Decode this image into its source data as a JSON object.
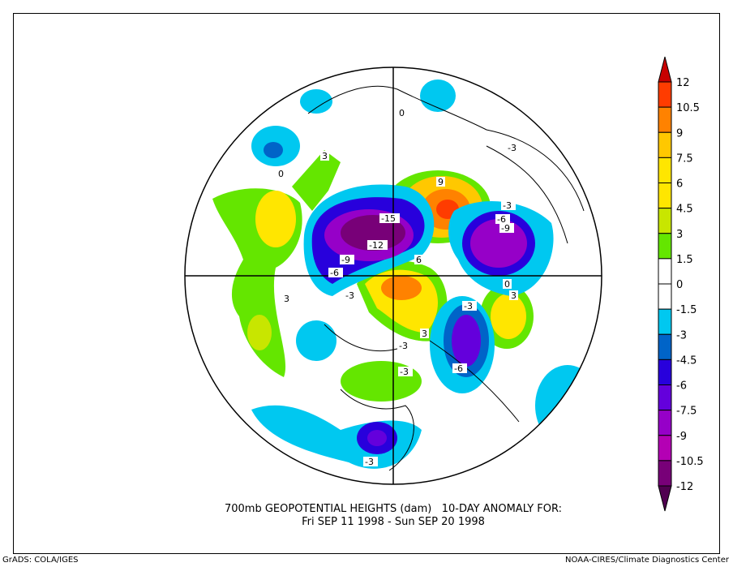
{
  "title": {
    "line1": "700mb GEOPOTENTIAL HEIGHTS (dam)   10-DAY ANOMALY FOR:",
    "line2": "Fri SEP 11 1998 - Sun SEP 20 1998"
  },
  "footer": {
    "left": "GrADS: COLA/IGES",
    "right": "NOAA-CIRES/Climate Diagnostics Center"
  },
  "colorbar": {
    "labels": [
      "12",
      "10.5",
      "9",
      "7.5",
      "6",
      "4.5",
      "3",
      "1.5",
      "0",
      "-1.5",
      "-3",
      "-4.5",
      "-6",
      "-7.5",
      "-9",
      "-10.5",
      "-12"
    ],
    "colors": [
      "#ff3c00",
      "#ff8200",
      "#ffc800",
      "#ffe600",
      "#ffe600",
      "#c8e600",
      "#64e600",
      "#ffffff",
      "#ffffff",
      "#00c8f0",
      "#0064c8",
      "#2800dc",
      "#6400dc",
      "#9600c8",
      "#b400b4",
      "#780078"
    ],
    "over_color": "#c80000",
    "under_color": "#500050"
  },
  "map_labels": [
    "-15",
    "-12",
    "-9",
    "-6",
    "-3",
    "3",
    "6",
    "9",
    "0",
    "-3",
    "-6",
    "-9",
    "-3",
    "3",
    "-3",
    "-3",
    "-6",
    "-3",
    "3",
    "0",
    "0",
    "3",
    "-3"
  ]
}
